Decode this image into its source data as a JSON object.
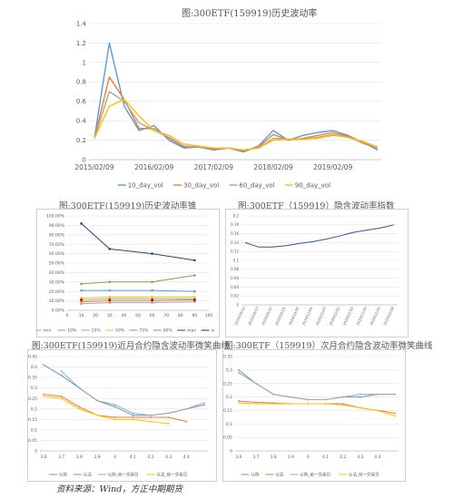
{
  "captions": {
    "main_title": "图:300ETF(159919)历史波动率",
    "fig_cone": "图:300ETF(159919)历史波动率锥",
    "fig_index": "图:300ETF（159919）隐含波动率指数",
    "fig_near": "图:300ETF(159919)近月合约隐含波动率微笑曲线",
    "fig_next": "图:300ETF（159919）次月合约隐含波动率微笑曲线",
    "source": "资料来源：Wind，方正中期期货"
  },
  "colors": {
    "blue": "#5b9bd5",
    "orange": "#ed7d31",
    "gray": "#a5a5a5",
    "gold": "#ffc000",
    "navy": "#264478",
    "green": "#70ad47",
    "red": "#c00000",
    "darkblue": "#2f5597"
  },
  "chart_data": [
    {
      "id": "hist_vol",
      "type": "line",
      "x": [
        "2015/02/09",
        "2015/06/01",
        "2015/09/01",
        "2015/12/01",
        "2016/02/09",
        "2016/06/01",
        "2016/09/01",
        "2016/12/01",
        "2017/02/09",
        "2017/06/01",
        "2017/09/01",
        "2017/12/01",
        "2018/02/09",
        "2018/06/01",
        "2018/09/01",
        "2018/12/01",
        "2019/02/09",
        "2019/06/01",
        "2019/09/01",
        "2019/11/30"
      ],
      "xticks": [
        "2015/02/09",
        "2016/02/09",
        "2017/02/09",
        "2018/02/09",
        "2019/02/09"
      ],
      "ylim": [
        0,
        1.4
      ],
      "yticks": [
        0,
        0.2,
        0.4,
        0.6,
        0.8,
        1.0,
        1.2,
        1.4
      ],
      "legend_position": "bottom",
      "series": [
        {
          "name": "10_day_vol",
          "color": "#5b9bd5",
          "values": [
            0.22,
            1.2,
            0.55,
            0.3,
            0.35,
            0.2,
            0.12,
            0.13,
            0.1,
            0.12,
            0.08,
            0.14,
            0.3,
            0.2,
            0.25,
            0.28,
            0.3,
            0.25,
            0.18,
            0.1
          ]
        },
        {
          "name": "30_day_vol",
          "color": "#ed7d31",
          "values": [
            0.22,
            0.85,
            0.62,
            0.32,
            0.32,
            0.22,
            0.13,
            0.13,
            0.11,
            0.12,
            0.09,
            0.13,
            0.26,
            0.2,
            0.22,
            0.25,
            0.28,
            0.24,
            0.17,
            0.12
          ]
        },
        {
          "name": "60_day_vol",
          "color": "#a5a5a5",
          "values": [
            0.22,
            0.7,
            0.6,
            0.38,
            0.3,
            0.23,
            0.14,
            0.13,
            0.12,
            0.12,
            0.1,
            0.12,
            0.22,
            0.21,
            0.21,
            0.23,
            0.26,
            0.23,
            0.18,
            0.12
          ]
        },
        {
          "name": "90_day_vol",
          "color": "#ffc000",
          "values": [
            0.22,
            0.55,
            0.62,
            0.45,
            0.3,
            0.25,
            0.16,
            0.14,
            0.12,
            0.12,
            0.1,
            0.12,
            0.2,
            0.21,
            0.21,
            0.22,
            0.25,
            0.23,
            0.19,
            0.13
          ]
        }
      ]
    },
    {
      "id": "vol_cone",
      "type": "line",
      "x": [
        10,
        30,
        60,
        90
      ],
      "xticks": [
        0,
        10,
        20,
        30,
        40,
        50,
        60,
        70,
        80,
        90,
        100
      ],
      "ylim": [
        0,
        1.0
      ],
      "yticks": [
        "0.00%",
        "10.00%",
        "20.00%",
        "30.00%",
        "40.00%",
        "50.00%",
        "60.00%",
        "70.00%",
        "80.00%",
        "90.00%",
        "100.00%"
      ],
      "legend_position": "bottom",
      "series": [
        {
          "name": "min",
          "color": "#a5a5a5",
          "values": [
            0.07,
            0.08,
            0.08,
            0.09
          ]
        },
        {
          "name": "10%",
          "color": "#ed7d31",
          "values": [
            0.09,
            0.1,
            0.1,
            0.11
          ]
        },
        {
          "name": "25%",
          "color": "#a5a5a5",
          "values": [
            0.11,
            0.12,
            0.12,
            0.12
          ]
        },
        {
          "name": "50%",
          "color": "#ffc000",
          "values": [
            0.13,
            0.14,
            0.14,
            0.14
          ]
        },
        {
          "name": "75%",
          "color": "#5b9bd5",
          "values": [
            0.21,
            0.21,
            0.21,
            0.2
          ]
        },
        {
          "name": "90%",
          "color": "#70ad47",
          "values": [
            0.28,
            0.3,
            0.3,
            0.37
          ]
        },
        {
          "name": "max",
          "color": "#264478",
          "values": [
            0.92,
            0.65,
            0.6,
            0.53
          ]
        },
        {
          "name": "iv",
          "color": "#c00000",
          "values": [
            0.11,
            0.11,
            0.11,
            0.11
          ]
        }
      ]
    },
    {
      "id": "iv_index",
      "type": "line",
      "xticks": [
        "2019/10/14",
        "2019/10/17",
        "2019/10/22",
        "2019/10/25",
        "2019/10/30",
        "2019/11/04",
        "2019/11/07",
        "2019/11/12",
        "2019/11/15",
        "2019/11/20",
        "2019/11/25",
        "2019/11/28"
      ],
      "ylim": [
        0,
        0.2
      ],
      "yticks": [
        0,
        0.02,
        0.04,
        0.06,
        0.08,
        0.1,
        0.12,
        0.14,
        0.16,
        0.18,
        0.2
      ],
      "series": [
        {
          "name": "IV index",
          "color": "#2f5597",
          "values": [
            0.14,
            0.13,
            0.13,
            0.133,
            0.138,
            0.142,
            0.148,
            0.155,
            0.163,
            0.168,
            0.173,
            0.18
          ]
        }
      ]
    },
    {
      "id": "smile_near",
      "type": "line",
      "x": [
        3.6,
        3.7,
        3.8,
        3.9,
        4.0,
        4.1,
        4.2,
        4.3,
        4.4,
        4.5
      ],
      "xticks": [
        3.6,
        3.7,
        3.8,
        3.9,
        4.0,
        4.1,
        4.2,
        4.3,
        4.4
      ],
      "ylim": [
        0,
        0.45
      ],
      "yticks": [
        0,
        0.05,
        0.1,
        0.15,
        0.2,
        0.25,
        0.3,
        0.35,
        0.4,
        0.45
      ],
      "legend_position": "bottom",
      "series": [
        {
          "name": "认购",
          "color": "#5b9bd5",
          "values": [
            0.41,
            0.36,
            0.3,
            0.24,
            0.21,
            0.17,
            0.17,
            0.18,
            0.2,
            0.22
          ]
        },
        {
          "name": "认沽",
          "color": "#ed7d31",
          "values": [
            0.27,
            0.26,
            0.21,
            0.17,
            0.16,
            0.16,
            0.16,
            0.16,
            0.14,
            null
          ]
        },
        {
          "name": "认购_前一交易日",
          "color": "#a5a5a5",
          "values": [
            null,
            0.38,
            0.3,
            0.24,
            0.22,
            0.18,
            0.17,
            0.18,
            0.2,
            0.23
          ]
        },
        {
          "name": "认沽_前一交易日",
          "color": "#ffc000",
          "values": [
            0.26,
            0.25,
            0.2,
            0.17,
            0.15,
            0.15,
            0.14,
            0.13,
            null,
            null
          ]
        }
      ]
    },
    {
      "id": "smile_next",
      "type": "line",
      "x": [
        3.6,
        3.7,
        3.8,
        3.9,
        4.0,
        4.1,
        4.2,
        4.3,
        4.4,
        4.5
      ],
      "xticks": [
        3.6,
        3.7,
        3.8,
        3.9,
        4.0,
        4.1,
        4.2,
        4.3,
        4.4
      ],
      "ylim": [
        0,
        0.35
      ],
      "yticks": [
        0,
        0.05,
        0.1,
        0.15,
        0.2,
        0.25,
        0.3,
        0.35
      ],
      "legend_position": "bottom",
      "series": [
        {
          "name": "认购",
          "color": "#5b9bd5",
          "values": [
            0.3,
            0.25,
            0.21,
            0.2,
            0.19,
            0.19,
            0.2,
            0.2,
            0.21,
            0.21
          ]
        },
        {
          "name": "认沽",
          "color": "#ed7d31",
          "values": [
            0.185,
            0.18,
            0.178,
            0.175,
            0.175,
            0.175,
            0.175,
            0.16,
            0.15,
            0.14
          ]
        },
        {
          "name": "认购_前一交易日",
          "color": "#a5a5a5",
          "values": [
            0.29,
            0.25,
            0.21,
            0.2,
            0.19,
            0.19,
            0.2,
            0.21,
            0.21,
            0.21
          ]
        },
        {
          "name": "认沽_前一交易日",
          "color": "#ffc000",
          "values": [
            0.178,
            0.175,
            0.175,
            0.175,
            0.175,
            0.175,
            0.17,
            0.16,
            0.15,
            0.13
          ]
        }
      ]
    }
  ]
}
